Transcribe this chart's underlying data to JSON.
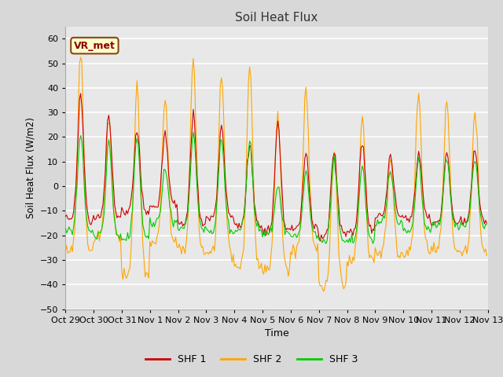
{
  "title": "Soil Heat Flux",
  "ylabel": "Soil Heat Flux (W/m2)",
  "xlabel": "Time",
  "ylim": [
    -50,
    65
  ],
  "xlim": [
    0,
    360
  ],
  "background_color": "#d8d8d8",
  "plot_bg_color": "#e8e8e8",
  "annotation_text": "VR_met",
  "annotation_color": "#8B0000",
  "annotation_bg": "#ffffcc",
  "grid_color": "white",
  "line_colors": {
    "SHF1": "#cc0000",
    "SHF2": "#ffa500",
    "SHF3": "#00cc00"
  },
  "legend_labels": [
    "SHF 1",
    "SHF 2",
    "SHF 3"
  ],
  "xtick_labels": [
    "Oct 29",
    "Oct 30",
    "Oct 31",
    "Nov 1",
    "Nov 2",
    "Nov 3",
    "Nov 4",
    "Nov 5",
    "Nov 6",
    "Nov 7",
    "Nov 8",
    "Nov 9",
    "Nov 10",
    "Nov 11",
    "Nov 12",
    "Nov 13"
  ],
  "xtick_positions": [
    0,
    24,
    48,
    72,
    96,
    120,
    144,
    168,
    192,
    216,
    240,
    264,
    288,
    312,
    336,
    360
  ]
}
